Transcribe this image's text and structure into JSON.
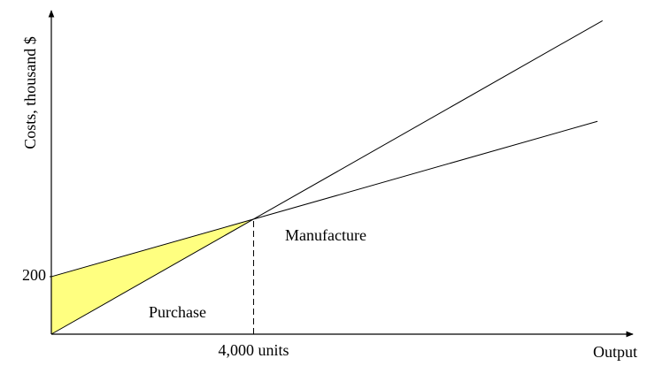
{
  "chart_data": {
    "type": "line",
    "y_label": "Costs, thousand $",
    "x_label": "Output",
    "xlim": [
      0,
      11500
    ],
    "ylim": [
      0,
      1125
    ],
    "xticks": [
      {
        "value": 4000,
        "label": "4,000 units"
      }
    ],
    "yticks": [
      200
    ],
    "fill_color": "#ffff80",
    "series": [
      {
        "name": "Purchase",
        "color": "#000000",
        "x": [
          0,
          4000,
          10900
        ],
        "values": [
          0,
          400,
          1090
        ]
      },
      {
        "name": "Manufacture",
        "color": "#000000",
        "x": [
          0,
          4000,
          10800
        ],
        "values": [
          200,
          400,
          740
        ]
      }
    ]
  }
}
